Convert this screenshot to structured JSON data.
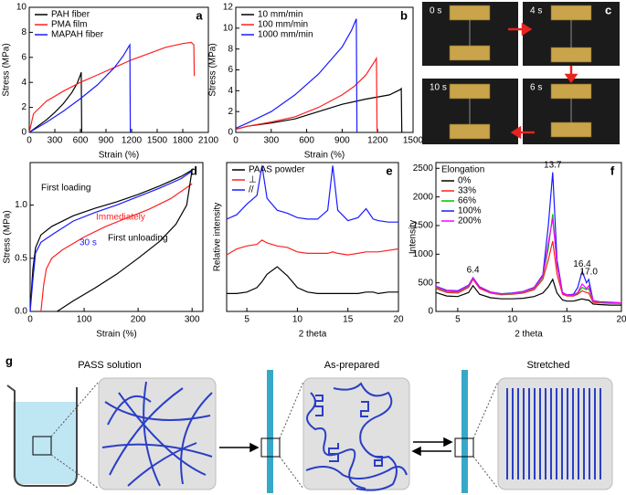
{
  "chart_data": [
    {
      "type": "line",
      "label": "a",
      "xlabel": "Strain (%)",
      "ylabel": "Stress (MPa)",
      "xlim": [
        0,
        2100
      ],
      "xticks": [
        0,
        300,
        600,
        900,
        1200,
        1500,
        1800,
        2100
      ],
      "ylim": [
        0,
        10
      ],
      "yticks": [
        0,
        2,
        4,
        6,
        8,
        10
      ],
      "legend": "upper left",
      "series": [
        {
          "name": "PAH fiber",
          "color": "#000000",
          "x": [
            0,
            100,
            200,
            300,
            400,
            500,
            560,
            600,
            610,
            615
          ],
          "values": [
            0,
            0.5,
            1.0,
            1.6,
            2.3,
            3.2,
            3.9,
            4.6,
            4.8,
            0
          ]
        },
        {
          "name": "PMA film",
          "color": "#ff2020",
          "x": [
            0,
            50,
            200,
            400,
            600,
            800,
            1000,
            1200,
            1400,
            1600,
            1800,
            1900,
            1930,
            1935
          ],
          "values": [
            0,
            1.5,
            2.5,
            3.3,
            4.0,
            4.6,
            5.2,
            5.8,
            6.3,
            6.8,
            7.1,
            7.2,
            7.0,
            4.5
          ]
        },
        {
          "name": "MAPAH fiber",
          "color": "#1a1aff",
          "x": [
            0,
            200,
            400,
            600,
            800,
            1000,
            1100,
            1170,
            1180,
            1185
          ],
          "values": [
            0,
            0.8,
            1.7,
            2.7,
            3.8,
            5.2,
            6.1,
            6.9,
            7.0,
            0
          ]
        }
      ]
    },
    {
      "type": "line",
      "label": "b",
      "xlabel": "Strain (%)",
      "ylabel": "Stress (MPa)",
      "xlim": [
        0,
        1500
      ],
      "xticks": [
        0,
        300,
        600,
        900,
        1200,
        1500
      ],
      "ylim": [
        0,
        12
      ],
      "yticks": [
        0,
        2,
        4,
        6,
        8,
        10,
        12
      ],
      "legend": "upper left",
      "series": [
        {
          "name": "10 mm/min",
          "color": "#000000",
          "x": [
            0,
            100,
            300,
            500,
            700,
            900,
            1100,
            1300,
            1390,
            1400,
            1405
          ],
          "values": [
            0.3,
            0.6,
            0.9,
            1.3,
            2.0,
            2.7,
            3.2,
            3.6,
            4.1,
            4.2,
            0
          ]
        },
        {
          "name": "100 mm/min",
          "color": "#ff2020",
          "x": [
            0,
            100,
            300,
            500,
            700,
            900,
            1000,
            1100,
            1180,
            1190,
            1195
          ],
          "values": [
            0.3,
            0.6,
            1.0,
            1.5,
            2.4,
            3.6,
            4.4,
            5.5,
            6.9,
            7.1,
            0
          ]
        },
        {
          "name": "1000 mm/min",
          "color": "#1a1aff",
          "x": [
            0,
            100,
            300,
            500,
            700,
            900,
            980,
            1020,
            1025
          ],
          "values": [
            0.4,
            0.9,
            2.0,
            3.6,
            5.6,
            8.2,
            9.8,
            10.9,
            0
          ]
        }
      ]
    },
    {
      "type": "line",
      "label": "d",
      "xlabel": "Strain (%)",
      "ylabel": "Stress (MPa)",
      "xlim": [
        0,
        320
      ],
      "xticks": [
        0,
        100,
        200,
        300
      ],
      "ylim": [
        0,
        1.4
      ],
      "yticks": [
        {
          "value": 0,
          "label": "0.0"
        },
        0.5,
        {
          "value": 1,
          "label": "1.0"
        }
      ],
      "series": [
        {
          "name": "First loading",
          "color": "#000000",
          "x": [
            0,
            5,
            10,
            20,
            40,
            80,
            120,
            160,
            200,
            240,
            280,
            300
          ],
          "values": [
            0,
            0.4,
            0.6,
            0.72,
            0.8,
            0.9,
            0.97,
            1.03,
            1.1,
            1.18,
            1.27,
            1.33
          ]
        },
        {
          "name": "30 s",
          "color": "#1a1aff",
          "x": [
            0,
            5,
            10,
            20,
            40,
            80,
            120,
            160,
            200,
            240,
            280,
            300
          ],
          "values": [
            0,
            0.3,
            0.55,
            0.65,
            0.72,
            0.85,
            0.93,
            1.0,
            1.08,
            1.16,
            1.25,
            1.32
          ]
        },
        {
          "name": "Immediately",
          "color": "#ff2020",
          "x": [
            20,
            25,
            30,
            40,
            60,
            100,
            140,
            180,
            220,
            260,
            300
          ],
          "values": [
            0,
            0.25,
            0.4,
            0.5,
            0.58,
            0.7,
            0.8,
            0.88,
            0.96,
            1.06,
            1.2
          ]
        },
        {
          "name": "First unloading",
          "color": "#000000",
          "x": [
            50,
            80,
            120,
            160,
            200,
            240,
            270,
            290,
            300
          ],
          "values": [
            0,
            0.1,
            0.22,
            0.35,
            0.5,
            0.66,
            0.82,
            1.0,
            1.33
          ]
        }
      ]
    },
    {
      "type": "line",
      "label": "e",
      "xlabel": "2 theta",
      "ylabel": "Relative intensity",
      "xlim": [
        3,
        20
      ],
      "xticks": [
        5,
        10,
        15,
        20
      ],
      "ylim": [
        0,
        10
      ],
      "legend": "upper left",
      "x": [
        3,
        4,
        5,
        6,
        6.5,
        7,
        8,
        9,
        10,
        11,
        12,
        13,
        13.5,
        14,
        15,
        16,
        16.8,
        17.5,
        18,
        19,
        20
      ],
      "series": [
        {
          "name": "PAAS powder",
          "color": "#000000",
          "values": [
            1.2,
            1.2,
            1.3,
            1.6,
            2.0,
            2.5,
            3.0,
            2.4,
            1.6,
            1.3,
            1.2,
            1.2,
            1.2,
            1.2,
            1.2,
            1.2,
            1.3,
            1.3,
            1.2,
            1.3,
            1.3
          ]
        },
        {
          "name": "⊥",
          "color": "#ff2020",
          "values": [
            3.8,
            4.2,
            4.4,
            4.5,
            4.8,
            4.6,
            4.4,
            4.3,
            4.0,
            3.9,
            3.9,
            3.9,
            4.0,
            3.9,
            3.8,
            3.9,
            4.0,
            4.0,
            4.0,
            4.1,
            4.2
          ]
        },
        {
          "name": "//",
          "color": "#1a1aff",
          "values": [
            6.2,
            6.5,
            7.2,
            7.8,
            9.8,
            7.6,
            6.8,
            6.6,
            6.3,
            6.2,
            6.2,
            6.8,
            9.8,
            6.8,
            6.1,
            6.3,
            6.9,
            6.2,
            6.1,
            6.0,
            6.0
          ]
        }
      ]
    },
    {
      "type": "line",
      "label": "f",
      "xlabel": "2 theta",
      "ylabel": "Intensity",
      "xlim": [
        3,
        20
      ],
      "xticks": [
        5,
        10,
        15,
        20
      ],
      "ylim": [
        0,
        2600
      ],
      "yticks": [
        0,
        500,
        1000,
        1500,
        2000,
        2500
      ],
      "legend": "upper left",
      "legend_title": "Elongation",
      "x": [
        3,
        4,
        5,
        6,
        6.4,
        7,
        8,
        9,
        10,
        11,
        12,
        12.8,
        13.3,
        13.7,
        14.1,
        14.6,
        15,
        15.6,
        16,
        16.4,
        16.8,
        17.0,
        17.4,
        18,
        19,
        20
      ],
      "series": [
        {
          "name": "0%",
          "color": "#000000",
          "values": [
            330,
            270,
            260,
            330,
            450,
            300,
            240,
            220,
            220,
            230,
            260,
            320,
            430,
            560,
            320,
            200,
            180,
            180,
            200,
            220,
            200,
            200,
            130,
            120,
            110,
            110
          ]
        },
        {
          "name": "33%",
          "color": "#ff2020",
          "values": [
            400,
            330,
            320,
            420,
            560,
            400,
            320,
            290,
            300,
            320,
            380,
            560,
            900,
            1230,
            650,
            300,
            270,
            270,
            300,
            360,
            330,
            320,
            160,
            150,
            140,
            140
          ]
        },
        {
          "name": "66%",
          "color": "#00c000",
          "values": [
            420,
            350,
            340,
            440,
            580,
            420,
            330,
            300,
            310,
            340,
            400,
            600,
            1100,
            1700,
            800,
            320,
            280,
            280,
            320,
            420,
            380,
            400,
            180,
            160,
            150,
            150
          ]
        },
        {
          "name": "100%",
          "color": "#1a1aff",
          "values": [
            440,
            370,
            360,
            460,
            590,
            430,
            340,
            310,
            320,
            350,
            420,
            640,
            1500,
            2430,
            900,
            330,
            290,
            300,
            420,
            700,
            500,
            560,
            190,
            170,
            160,
            150
          ]
        },
        {
          "name": "200%",
          "color": "#ff00ff",
          "values": [
            430,
            360,
            350,
            450,
            580,
            420,
            335,
            305,
            315,
            345,
            410,
            620,
            1200,
            1620,
            820,
            320,
            285,
            290,
            330,
            480,
            400,
            450,
            185,
            165,
            155,
            150
          ]
        }
      ],
      "annotations": [
        {
          "text": "6.4",
          "x": 6.4
        },
        {
          "text": "13.7",
          "x": 13.7
        },
        {
          "text": "16.4",
          "x": 16.4
        },
        {
          "text": "17.0",
          "x": 17.0
        }
      ]
    }
  ],
  "panel_c": {
    "label": "c",
    "frames": [
      "0 s",
      "4 s",
      "10 s",
      "6 s"
    ]
  },
  "panel_g": {
    "label": "g",
    "captions": [
      "PASS solution",
      "As-prepared",
      "Stretched"
    ]
  }
}
